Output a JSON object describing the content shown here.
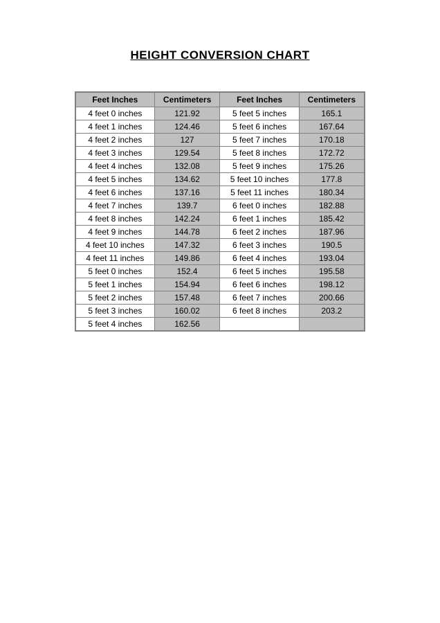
{
  "title": "HEIGHT CONVERSION CHART",
  "columns": [
    "Feet Inches",
    "Centimeters",
    "Feet Inches",
    "Centimeters"
  ],
  "rows": [
    [
      "4 feet 0 inches",
      "121.92",
      "5 feet 5 inches",
      "165.1"
    ],
    [
      "4 feet 1 inches",
      "124.46",
      "5 feet 6 inches",
      "167.64"
    ],
    [
      "4 feet 2 inches",
      "127",
      "5 feet 7 inches",
      "170.18"
    ],
    [
      "4 feet 3 inches",
      "129.54",
      "5 feet 8 inches",
      "172.72"
    ],
    [
      "4 feet 4 inches",
      "132.08",
      "5 feet 9 inches",
      "175.26"
    ],
    [
      "4 feet 5 inches",
      "134.62",
      "5 feet 10 inches",
      "177.8"
    ],
    [
      "4 feet 6 inches",
      "137.16",
      "5 feet 11 inches",
      "180.34"
    ],
    [
      "4 feet 7 inches",
      "139.7",
      "6 feet 0 inches",
      "182.88"
    ],
    [
      "4 feet 8 inches",
      "142.24",
      "6 feet 1 inches",
      "185.42"
    ],
    [
      "4 feet 9 inches",
      "144.78",
      "6 feet 2 inches",
      "187.96"
    ],
    [
      "4 feet 10 inches",
      "147.32",
      "6 feet 3 inches",
      "190.5"
    ],
    [
      "4 feet 11 inches",
      "149.86",
      "6 feet 4 inches",
      "193.04"
    ],
    [
      "5 feet 0 inches",
      "152.4",
      "6 feet 5 inches",
      "195.58"
    ],
    [
      "5 feet 1 inches",
      "154.94",
      "6 feet 6 inches",
      "198.12"
    ],
    [
      "5 feet 2 inches",
      "157.48",
      "6 feet 7 inches",
      "200.66"
    ],
    [
      "5 feet 3 inches",
      "160.02",
      "6 feet 8 inches",
      "203.2"
    ],
    [
      "5 feet 4 inches",
      "162.56",
      "",
      ""
    ]
  ],
  "styles": {
    "header_bg": "#bfbfbf",
    "cm_bg": "#bfbfbf",
    "fi_bg": "#ffffff",
    "border_color": "#808080",
    "title_fontsize": 17,
    "cell_fontsize": 12
  }
}
